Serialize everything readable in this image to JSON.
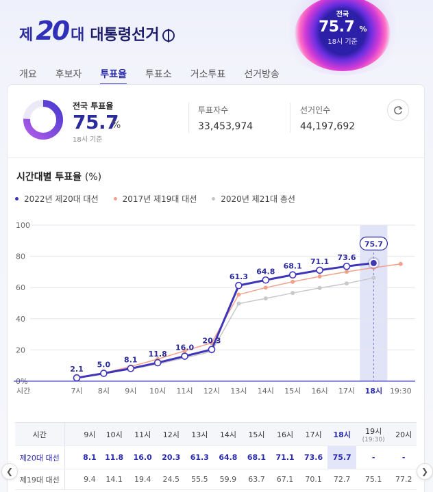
{
  "header": {
    "logo_prefix": "제",
    "logo_number": "20",
    "logo_suffix": "대",
    "logo_name": "대통령선거",
    "badge": {
      "label": "전국",
      "value": "75.7",
      "unit": "%",
      "note": "18시 기준"
    }
  },
  "tabs": [
    {
      "label": "개요",
      "active": false
    },
    {
      "label": "후보자",
      "active": false
    },
    {
      "label": "투표율",
      "active": true
    },
    {
      "label": "투표소",
      "active": false
    },
    {
      "label": "거소투표",
      "active": false
    },
    {
      "label": "선거방송",
      "active": false
    }
  ],
  "summary": {
    "label": "전국 투표율",
    "value": "75.7",
    "value_num": 75.7,
    "unit": "%",
    "note": "18시 기준",
    "voters_label": "투표자수",
    "voters_value": "33,453,974",
    "electorate_label": "선거인수",
    "electorate_value": "44,197,692"
  },
  "colors": {
    "series2022": "#3f35b8",
    "series2017": "#f2a18a",
    "series2020": "#c8c8cc",
    "highlight": "#e1e3f7",
    "accent": "#2b2bb0"
  },
  "chart_data": {
    "type": "line",
    "title": "시간대별 투표율",
    "title_unit": "(%)",
    "xlabel": "시간",
    "categories": [
      "7시",
      "8시",
      "9시",
      "10시",
      "11시",
      "12시",
      "13시",
      "14시",
      "15시",
      "16시",
      "17시",
      "18시",
      "19:30"
    ],
    "ylim": [
      0,
      100
    ],
    "yticks": [
      "0%",
      "20",
      "40",
      "60",
      "80",
      "100"
    ],
    "grid": true,
    "legend_position": "top-left",
    "highlight_category": "18시",
    "highlight_label": "75.7",
    "series": [
      {
        "name": "2022년 제20대 대선",
        "color": "#3f35b8",
        "values": [
          2.1,
          5.0,
          8.1,
          11.8,
          16.0,
          20.3,
          61.3,
          64.8,
          68.1,
          71.1,
          73.6,
          75.7,
          null
        ],
        "labels": [
          "2.1",
          "5.0",
          "8.1",
          "11.8",
          "16.0",
          "20.3",
          "61.3",
          "64.8",
          "68.1",
          "71.1",
          "73.6",
          "",
          ""
        ]
      },
      {
        "name": "2017년 제19대 대선",
        "color": "#f2a18a",
        "values": [
          2.3,
          5.2,
          9.4,
          14.1,
          19.4,
          24.5,
          55.5,
          59.9,
          63.7,
          67.1,
          70.1,
          72.7,
          75.1
        ]
      },
      {
        "name": "2020년 제21대 총선",
        "color": "#c8c8cc",
        "values": [
          2.1,
          4.9,
          7.6,
          10.9,
          14.9,
          19.0,
          49.7,
          53.0,
          56.5,
          59.7,
          62.6,
          66.2,
          null
        ]
      }
    ]
  },
  "table": {
    "head_label": "시간",
    "columns": [
      {
        "label": "9시",
        "sub": ""
      },
      {
        "label": "10시",
        "sub": ""
      },
      {
        "label": "11시",
        "sub": ""
      },
      {
        "label": "12시",
        "sub": ""
      },
      {
        "label": "13시",
        "sub": ""
      },
      {
        "label": "14시",
        "sub": ""
      },
      {
        "label": "15시",
        "sub": ""
      },
      {
        "label": "16시",
        "sub": ""
      },
      {
        "label": "17시",
        "sub": ""
      },
      {
        "label": "18시",
        "sub": ""
      },
      {
        "label": "19시",
        "sub": "(19:30)"
      },
      {
        "label": "20시",
        "sub": ""
      }
    ],
    "rows": [
      {
        "label": "제20대 대선",
        "values": [
          "8.1",
          "11.8",
          "16.0",
          "20.3",
          "61.3",
          "64.8",
          "68.1",
          "71.1",
          "73.6",
          "75.7",
          "-",
          "-"
        ]
      },
      {
        "label": "제19대 대선",
        "values": [
          "9.4",
          "14.1",
          "19.4",
          "24.5",
          "55.5",
          "59.9",
          "63.7",
          "67.1",
          "70.1",
          "72.7",
          "75.1",
          "77.2"
        ]
      }
    ]
  }
}
